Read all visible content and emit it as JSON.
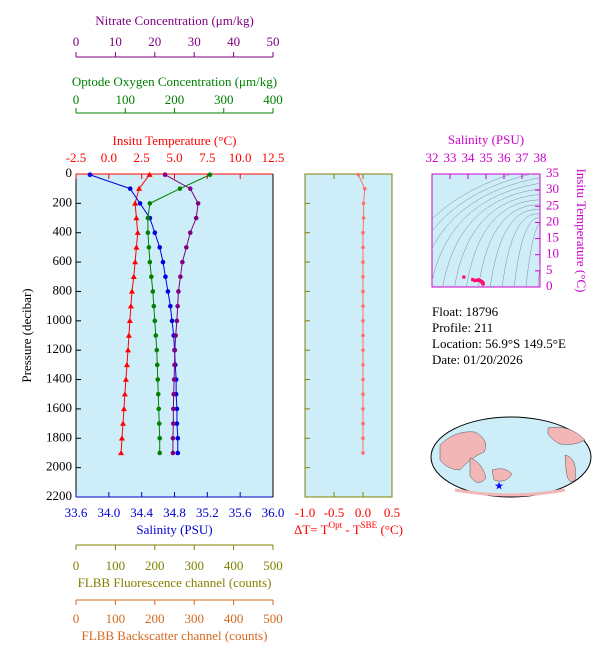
{
  "chart_data": [
    {
      "type": "line",
      "ylabel": "Pressure (decibar)",
      "ylim": [
        0,
        2200
      ],
      "y_inverted": true,
      "yticks": [
        0,
        200,
        400,
        600,
        800,
        1000,
        1200,
        1400,
        1600,
        1800,
        2000,
        2200
      ],
      "y": [
        5,
        100,
        200,
        300,
        400,
        500,
        600,
        700,
        800,
        900,
        1000,
        1100,
        1200,
        1300,
        1400,
        1500,
        1600,
        1700,
        1800,
        1900
      ],
      "background": "#cdeef8",
      "xaxes": [
        {
          "label": "Insitu Temperature (°C)",
          "color": "#ff0000",
          "xlim": [
            -2.5,
            12.5
          ],
          "xticks": [
            -2.5,
            {
              "value": 0,
              "label": "0.0"
            },
            2.5,
            {
              "value": 5,
              "label": "5.0"
            },
            7.5,
            {
              "value": 10,
              "label": "10.0"
            },
            12.5
          ]
        },
        {
          "label": "Optode Oxygen Concentration (μm/kg)",
          "color": "#008000",
          "xlim": [
            0,
            400
          ],
          "xticks": [
            0,
            100,
            200,
            300,
            400
          ]
        },
        {
          "label": "Nitrate Concentration (μm/kg)",
          "color": "#800080",
          "xlim": [
            0,
            50
          ],
          "xticks": [
            0,
            10,
            20,
            30,
            40,
            50
          ]
        },
        {
          "label": "Salinity (PSU)",
          "color": "#0000cc",
          "xlim": [
            33.6,
            36
          ],
          "xticks": [
            33.6,
            {
              "value": 34,
              "label": "34.0"
            },
            34.4,
            34.8,
            35.2,
            35.6,
            {
              "value": 36,
              "label": "36.0"
            }
          ]
        },
        {
          "label": "FLBB Fluorescence channel (counts)",
          "color": "#808000",
          "xlim": [
            0,
            500
          ],
          "xticks": [
            0,
            100,
            200,
            300,
            400,
            500
          ]
        },
        {
          "label": "FLBB Backscatter channel (counts)",
          "color": "#d2691e",
          "xlim": [
            0,
            500
          ],
          "xticks": [
            0,
            100,
            200,
            300,
            400,
            500
          ]
        }
      ],
      "series": [
        {
          "axis": 0,
          "color": "#ff0000",
          "marker": "triangle",
          "values": [
            3.1,
            2.3,
            2.0,
            2.1,
            2.2,
            2.1,
            2.0,
            1.9,
            1.76,
            1.68,
            1.6,
            1.53,
            1.46,
            1.38,
            1.3,
            1.22,
            1.15,
            1.08,
            1.0,
            0.93
          ]
        },
        {
          "axis": 3,
          "color": "#0000dd",
          "marker": "circle",
          "values": [
            33.77,
            34.26,
            34.38,
            34.5,
            34.56,
            34.62,
            34.66,
            34.69,
            34.72,
            34.75,
            34.77,
            34.79,
            34.8,
            34.81,
            34.82,
            34.82,
            34.83,
            34.83,
            34.84,
            34.84
          ]
        },
        {
          "axis": 1,
          "color": "#008000",
          "marker": "circle",
          "values": [
            272,
            211,
            150,
            146,
            146,
            148,
            150,
            153,
            156,
            158,
            160,
            162,
            164,
            165,
            166,
            167,
            168,
            169,
            170,
            170
          ]
        },
        {
          "axis": 2,
          "color": "#800080",
          "marker": "circle",
          "values": [
            22.6,
            29,
            31,
            30.5,
            29,
            28,
            27,
            26.5,
            26,
            25.8,
            25.6,
            25.3,
            25.1,
            25,
            24.9,
            24.8,
            24.7,
            24.7,
            24.6,
            24.6
          ]
        }
      ]
    },
    {
      "type": "line",
      "xlabel": [
        "ΔT= T",
        "Opt",
        " - T",
        "SBE",
        " (°C)"
      ],
      "label_color": "#ff0000",
      "frame_color": "#808000",
      "color": "#ff6f6f",
      "xlim": [
        -1,
        0.5
      ],
      "xticks": [
        {
          "value": -1,
          "label": "-1.0"
        },
        -0.5,
        {
          "value": 0,
          "label": "0.0"
        },
        0.5
      ],
      "values": [
        -0.08,
        0.03,
        0.01,
        0.01,
        0.0,
        0.0,
        0.0,
        0.0,
        0.0,
        0.0,
        0.0,
        0.0,
        0.0,
        0.0,
        0.0,
        0.0,
        0.0,
        0.0,
        0.0,
        0.0
      ]
    },
    {
      "type": "scatter",
      "title": "Salinity (PSU)",
      "ylabel": "Insitu Temperature (°C)",
      "color": "#cc00cc",
      "point_color": "#ff1070",
      "xlim": [
        32,
        38
      ],
      "xticks": [
        32,
        33,
        34,
        35,
        36,
        37,
        38
      ],
      "ylim": [
        0,
        35
      ],
      "yticks": [
        0,
        5,
        10,
        15,
        20,
        25,
        30,
        35
      ]
    }
  ],
  "info": [
    "Float:  18796",
    "Profile:  211",
    "Location:  56.9°S  149.5°E",
    "Date:  01/20/2026"
  ]
}
